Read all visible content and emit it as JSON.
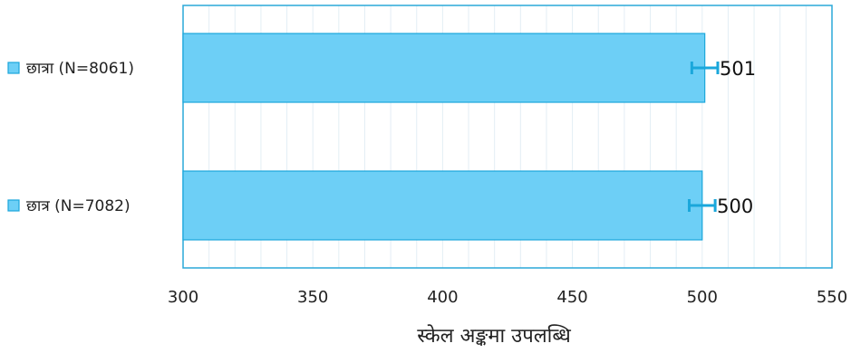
{
  "chart_data": {
    "type": "bar",
    "orientation": "horizontal",
    "categories": [
      "छात्रा  (N=8061)",
      "छात्र  (N=7082)"
    ],
    "values": [
      501,
      500
    ],
    "error_bars": [
      5,
      5
    ],
    "data_labels": [
      "501",
      "500"
    ],
    "xlabel": "स्केल अङ्कमा उपलब्धि",
    "ylabel": "",
    "xlim": [
      300,
      550
    ],
    "xticks": [
      "300",
      "350",
      "400",
      "450",
      "500",
      "550"
    ],
    "grid": true,
    "bar_color": "#6dcff6",
    "bar_edge_color": "#1aa7db",
    "errorbar_color": "#1aa7db",
    "gridline_color": "#e3eef5",
    "frame_color": "#2aa8d8"
  }
}
